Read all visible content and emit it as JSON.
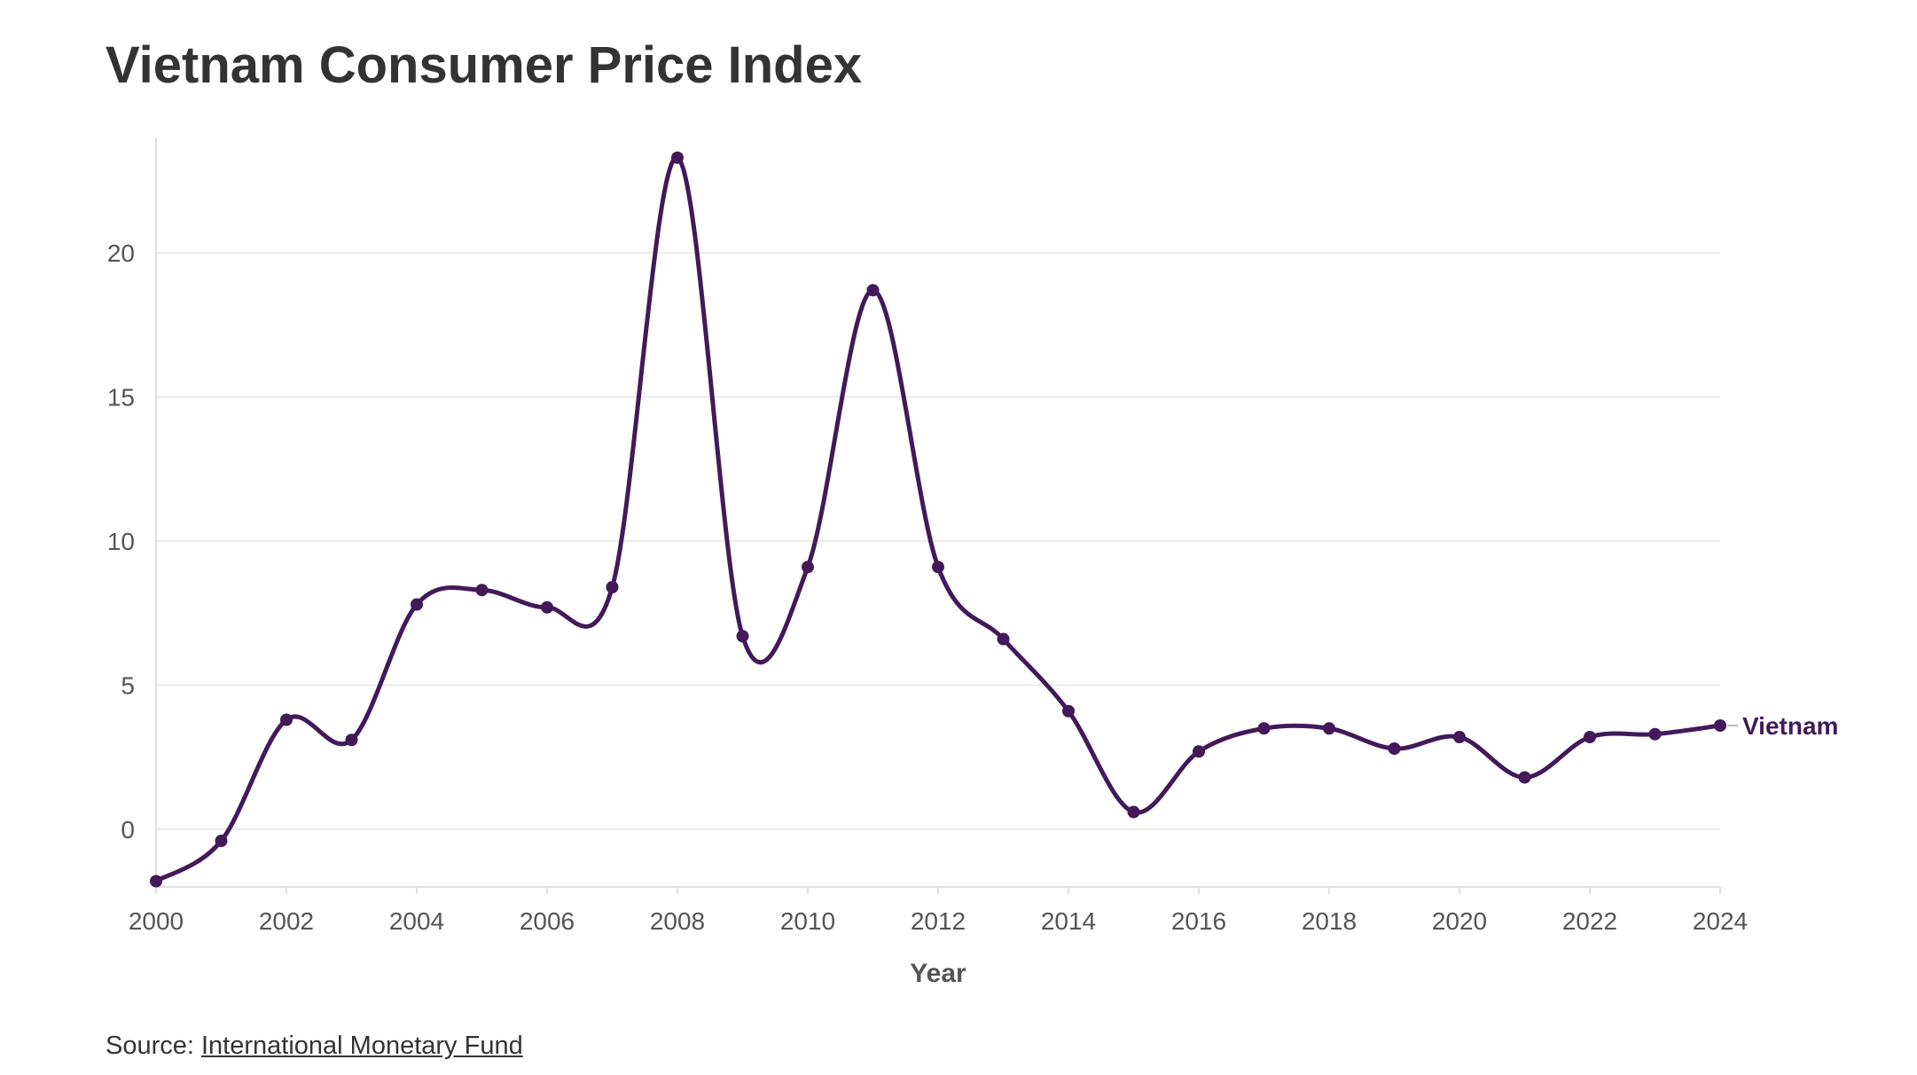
{
  "title": "Vietnam Consumer Price Index",
  "source": {
    "prefix": "Source: ",
    "link_text": "International Monetary Fund"
  },
  "colors": {
    "series": "#43195a",
    "grid": "#ebebeb",
    "axis": "#e0e0e0"
  },
  "chart_data": {
    "type": "line",
    "title": "Vietnam Consumer Price Index",
    "xlabel": "Year",
    "ylabel": "",
    "xlim": [
      2000,
      2024
    ],
    "ylim": [
      -2,
      24
    ],
    "x_ticks": [
      2000,
      2002,
      2004,
      2006,
      2008,
      2010,
      2012,
      2014,
      2016,
      2018,
      2020,
      2022,
      2024
    ],
    "y_ticks": [
      0,
      5,
      10,
      15,
      20
    ],
    "grid": "horizontal",
    "legend": "none",
    "series": [
      {
        "name": "Vietnam",
        "color": "#43195a",
        "x": [
          2000,
          2001,
          2002,
          2003,
          2004,
          2005,
          2006,
          2007,
          2008,
          2009,
          2010,
          2011,
          2012,
          2013,
          2014,
          2015,
          2016,
          2017,
          2018,
          2019,
          2020,
          2021,
          2022,
          2023,
          2024
        ],
        "y": [
          -1.8,
          -0.4,
          3.8,
          3.1,
          7.8,
          8.3,
          7.7,
          8.4,
          23.3,
          6.7,
          9.1,
          18.7,
          9.1,
          6.6,
          4.1,
          0.6,
          2.7,
          3.5,
          3.5,
          2.8,
          3.2,
          1.8,
          3.2,
          3.3,
          3.6
        ]
      }
    ]
  }
}
